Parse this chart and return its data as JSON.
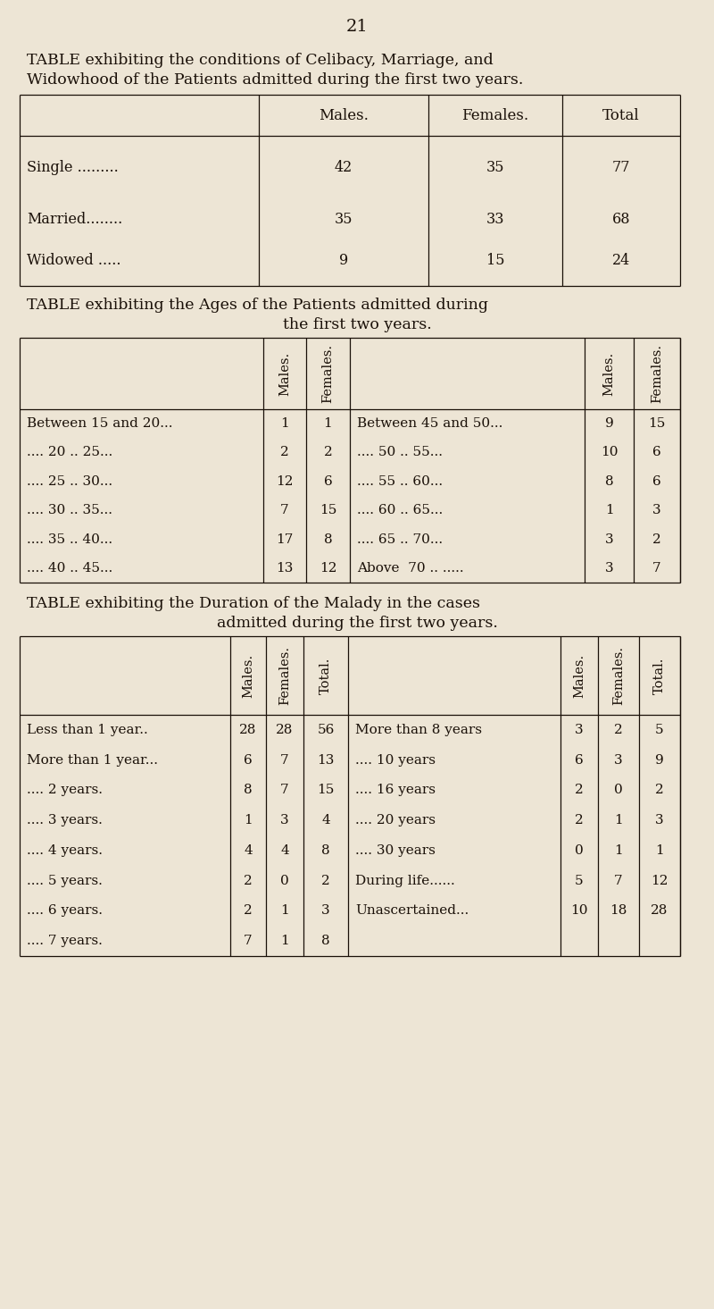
{
  "bg_color": "#ede5d5",
  "text_color": "#1a1008",
  "page_number": "21",
  "table1": {
    "title_line1": "TABLE exhibiting the conditions of Celibacy, Marriage, and",
    "title_line2": "Widowhood of the Patients admitted during the first two years.",
    "headers": [
      "",
      "Males.",
      "Females.",
      "Total"
    ],
    "rows": [
      [
        "Single .........",
        "42",
        "35",
        "77"
      ],
      [
        "Married........",
        "35",
        "33",
        "68"
      ],
      [
        "Widowed .....",
        "9",
        "15",
        "24"
      ]
    ]
  },
  "table2": {
    "title_line1": "TABLE exhibiting the Ages of the Patients admitted during",
    "title_line2": "the first two years.",
    "left_rows": [
      [
        "Between 15 and 20...",
        "1",
        "1"
      ],
      [
        ".... 20 .. 25...",
        "2",
        "2"
      ],
      [
        ".... 25 .. 30...",
        "12",
        "6"
      ],
      [
        ".... 30 .. 35...",
        "7",
        "15"
      ],
      [
        ".... 35 .. 40...",
        "17",
        "8"
      ],
      [
        ".... 40 .. 45...",
        "13",
        "12"
      ]
    ],
    "right_rows": [
      [
        "Between 45 and 50...",
        "9",
        "15"
      ],
      [
        ".... 50 .. 55...",
        "10",
        "6"
      ],
      [
        ".... 55 .. 60...",
        "8",
        "6"
      ],
      [
        ".... 60 .. 65...",
        "1",
        "3"
      ],
      [
        ".... 65 .. 70...",
        "3",
        "2"
      ],
      [
        "Above  70 .. .....",
        "3",
        "7"
      ]
    ]
  },
  "table3": {
    "title_line1": "TABLE exhibiting the Duration of the Malady in the cases",
    "title_line2": "admitted during the first two years.",
    "left_rows": [
      [
        "Less than 1 year..",
        "28",
        "28",
        "56"
      ],
      [
        "More than 1 year...",
        "6",
        "7",
        "13"
      ],
      [
        ".... 2 years.",
        "8",
        "7",
        "15"
      ],
      [
        ".... 3 years.",
        "1",
        "3",
        "4"
      ],
      [
        ".... 4 years.",
        "4",
        "4",
        "8"
      ],
      [
        ".... 5 years.",
        "2",
        "0",
        "2"
      ],
      [
        ".... 6 years.",
        "2",
        "1",
        "3"
      ],
      [
        ".... 7 years.",
        "7",
        "1",
        "8"
      ]
    ],
    "right_rows": [
      [
        "More than 8 years",
        "3",
        "2",
        "5"
      ],
      [
        ".... 10 years",
        "6",
        "3",
        "9"
      ],
      [
        ".... 16 years",
        "2",
        "0",
        "2"
      ],
      [
        ".... 20 years",
        "2",
        "1",
        "3"
      ],
      [
        ".... 30 years",
        "0",
        "1",
        "1"
      ],
      [
        "During life......",
        "5",
        "7",
        "12"
      ],
      [
        "Unascertained...",
        "10",
        "18",
        "28"
      ]
    ]
  }
}
